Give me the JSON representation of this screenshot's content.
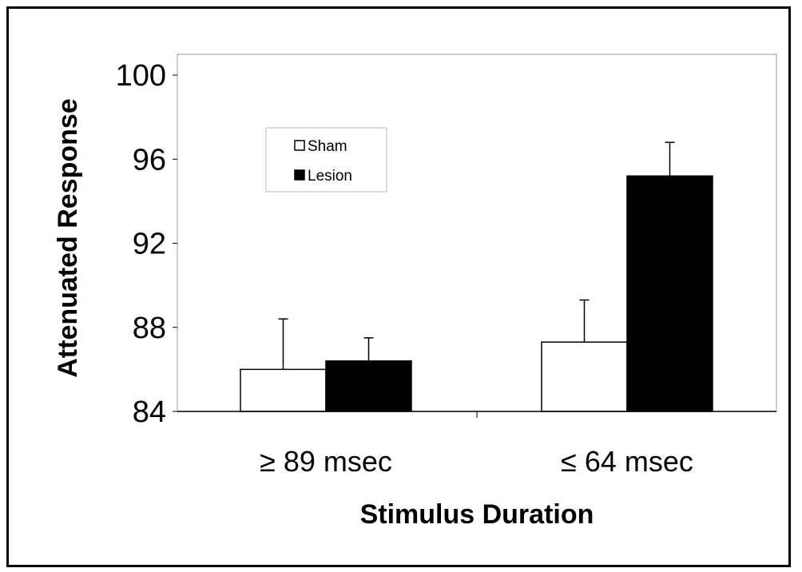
{
  "chart_data": {
    "type": "bar",
    "categories": [
      "≥ 89 msec",
      "≤ 64 msec"
    ],
    "series": [
      {
        "name": "Sham",
        "values": [
          86.0,
          87.3
        ],
        "errors": [
          2.4,
          2.0
        ],
        "color": "#ffffff"
      },
      {
        "name": "Lesion",
        "values": [
          86.4,
          95.2
        ],
        "errors": [
          1.1,
          1.6
        ],
        "color": "#000000"
      }
    ],
    "title": "",
    "xlabel": "Stimulus Duration",
    "ylabel": "Attenuated Response",
    "ylim": [
      84,
      100
    ],
    "yticks": [
      84,
      88,
      92,
      96,
      100
    ],
    "grid": false,
    "legend": "top-left"
  }
}
